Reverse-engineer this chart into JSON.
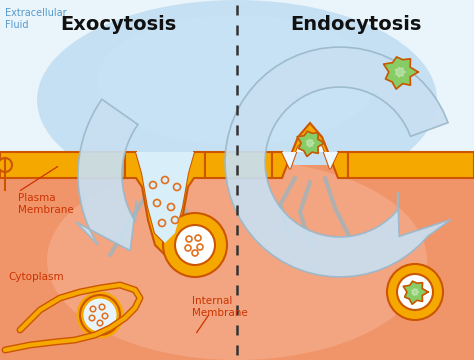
{
  "title_exo": "Exocytosis",
  "title_endo": "Endocytosis",
  "label_extracellular": "Extracellular\nFluid",
  "label_plasma": "Plasma\nMembrane",
  "label_cytoplasm": "Cytoplasm",
  "label_internal": "Internal\nMembrane",
  "bg_top_left": "#daeef8",
  "bg_top_right": "#cce4f5",
  "bg_bottom": "#f0a070",
  "membrane_fill": "#f5a800",
  "membrane_edge": "#cc5500",
  "arrow_fill": "#c8dff0",
  "arrow_edge": "#9ab8cc",
  "text_dark": "#111111",
  "text_red": "#cc3300",
  "text_blue": "#5599cc",
  "dot_color": "#e07020",
  "green_color": "#88cc66",
  "green_edge": "#cc5500",
  "white_fill": "#ffffff",
  "figsize": [
    4.74,
    3.6
  ],
  "dpi": 100
}
